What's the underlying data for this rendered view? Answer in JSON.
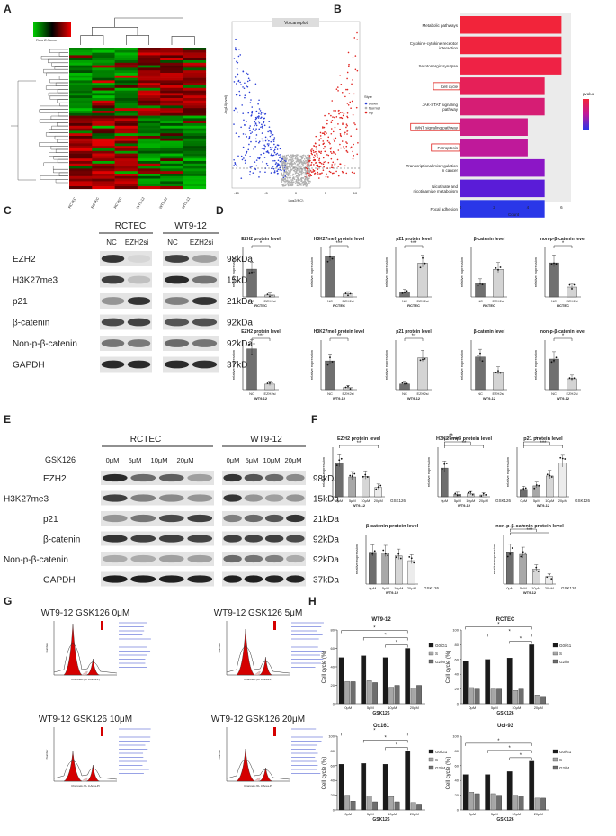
{
  "panels": {
    "A": {
      "letter": "A",
      "color_key": {
        "title": "Color Key",
        "axis": "Row Z-Score"
      },
      "heatmap_columns": [
        "RCTEC",
        "RCTEC",
        "RCTEC",
        "WT9-12",
        "WT9-12",
        "WT9-12"
      ],
      "volcano": {
        "title": "Volcanoplot",
        "xlabel": "Log2(FC)",
        "ylabel": "-log10(pval)",
        "xticks": [
          "-10",
          "-5",
          "0",
          "5",
          "10"
        ],
        "legend_title": "Style",
        "legend": [
          "Down",
          "Normal",
          "Up"
        ],
        "colors": {
          "down": "#2b3fd6",
          "normal": "#b0b0b0",
          "up": "#e0231f"
        }
      }
    },
    "B": {
      "letter": "B",
      "chart_data": {
        "type": "bar",
        "orientation": "horizontal",
        "categories": [
          "Metabolic pathways",
          "Cytokine-cytokine receptor interaction",
          "Serotonergic synapse",
          "Cell cycle",
          "JAK-STAT signaling pathway",
          "WNT signaling pathway",
          "Ferroptosis",
          "Transcriptional misregulation in cancer",
          "Nicotinate and nicotinamide metabolism",
          "Focal adhesion"
        ],
        "values": [
          6,
          6,
          6,
          5,
          5,
          4,
          4,
          5,
          5,
          5
        ],
        "highlighted": [
          "Cell cycle",
          "WNT signaling pathway",
          "Ferroptosis"
        ],
        "xlabel": "Count",
        "xticks": [
          "0",
          "2",
          "4",
          "6"
        ],
        "legend_title": "pvalue",
        "colors": [
          "#f2243a",
          "#f0233e",
          "#ef2245",
          "#e62058",
          "#d61d74",
          "#cc1b86",
          "#bf199a",
          "#8c16c6",
          "#5a1cd8",
          "#2a37e8"
        ]
      }
    },
    "C": {
      "letter": "C",
      "groups": [
        "RCTEC",
        "WT9-12"
      ],
      "lanes": [
        "NC",
        "EZH2si",
        "NC",
        "EZH2si"
      ],
      "proteins": [
        "EZH2",
        "H3K27me3",
        "p21",
        "β-catenin",
        "Non-p-β-catenin",
        "GAPDH"
      ],
      "sizes": [
        "98kDa",
        "15kDa",
        "21kDa",
        "92kDa",
        "92kDa",
        "37kDa"
      ]
    },
    "D": {
      "letter": "D",
      "ylabel": "relative expression",
      "chart_data": [
        {
          "type": "bar",
          "title": "EZH2 protein level",
          "cell": "RCTEC",
          "categories": [
            "NC",
            "EZH2si"
          ],
          "values": [
            0.45,
            0.03
          ],
          "ylim": [
            0,
            0.8
          ],
          "sig": "*"
        },
        {
          "type": "bar",
          "title": "H3K27me3 protein level",
          "cell": "RCTEC",
          "categories": [
            "NC",
            "EZH2si"
          ],
          "values": [
            0.41,
            0.03
          ],
          "ylim": [
            0,
            0.5
          ],
          "sig": "***"
        },
        {
          "type": "bar",
          "title": "p21 protein level",
          "cell": "RCTEC",
          "categories": [
            "NC",
            "EZH2si"
          ],
          "values": [
            0.12,
            0.82
          ],
          "ylim": [
            0,
            1.2
          ],
          "sig": "***"
        },
        {
          "type": "bar",
          "title": "β-catenin level",
          "cell": "RCTEC",
          "categories": [
            "NC",
            "EZH2si"
          ],
          "values": [
            0.07,
            0.14
          ],
          "ylim": [
            0,
            0.25
          ],
          "sig": ""
        },
        {
          "type": "bar",
          "title": "non-p-β-catenin level",
          "cell": "RCTEC",
          "categories": [
            "NC",
            "EZH2si"
          ],
          "values": [
            0.62,
            0.18
          ],
          "ylim": [
            0,
            0.9
          ],
          "sig": "*"
        },
        {
          "type": "bar",
          "title": "EZH2 protein level",
          "cell": "WT9-12",
          "categories": [
            "NC",
            "EZH2si"
          ],
          "values": [
            0.37,
            0.05
          ],
          "ylim": [
            0,
            0.45
          ],
          "sig": "***"
        },
        {
          "type": "bar",
          "title": "H3K27me3 protein level",
          "cell": "WT9-12",
          "categories": [
            "NC",
            "EZH2si"
          ],
          "values": [
            0.58,
            0.04
          ],
          "ylim": [
            0,
            1.0
          ],
          "sig": "**"
        },
        {
          "type": "bar",
          "title": "p21 protein level",
          "cell": "WT9-12",
          "categories": [
            "NC",
            "EZH2si"
          ],
          "values": [
            0.08,
            0.45
          ],
          "ylim": [
            0,
            0.7
          ],
          "sig": "**"
        },
        {
          "type": "bar",
          "title": "β-catenin level",
          "cell": "WT9-12",
          "categories": [
            "NC",
            "EZH2si"
          ],
          "values": [
            0.33,
            0.18
          ],
          "ylim": [
            0,
            0.5
          ],
          "sig": ""
        },
        {
          "type": "bar",
          "title": "non-p-β-catenin level",
          "cell": "WT9-12",
          "categories": [
            "NC",
            "EZH2si"
          ],
          "values": [
            0.34,
            0.12
          ],
          "ylim": [
            0,
            0.55
          ],
          "sig": "*"
        }
      ]
    },
    "E": {
      "letter": "E",
      "treatment": "GSK126",
      "groups": [
        "RCTEC",
        "WT9-12"
      ],
      "doses": [
        "0μM",
        "5μM",
        "10μM",
        "20μM"
      ],
      "proteins": [
        "EZH2",
        "H3K27me3",
        "p21",
        "β-catenin",
        "Non-p-β-catenin",
        "GAPDH"
      ],
      "sizes": [
        "98kDa",
        "15kDa",
        "21kDa",
        "92kDa",
        "92kDa",
        "37kDa"
      ]
    },
    "F": {
      "letter": "F",
      "ylabel": "relative expression",
      "xgroup": "WT9-12",
      "treatment": "GSK126",
      "chart_data": [
        {
          "type": "bar",
          "title": "EZH2 protein level",
          "categories": [
            "0μM",
            "5μM",
            "10μM",
            "20μM"
          ],
          "values": [
            0.55,
            0.32,
            0.33,
            0.15
          ],
          "ylim": [
            0,
            0.8
          ],
          "sig": [
            "**"
          ]
        },
        {
          "type": "bar",
          "title": "H3K27me3 protein level",
          "categories": [
            "0μM",
            "5μM",
            "10μM",
            "20μM"
          ],
          "values": [
            1.45,
            0.12,
            0.15,
            0.09
          ],
          "ylim": [
            0,
            2.5
          ],
          "sig": [
            "**",
            "**",
            "**"
          ]
        },
        {
          "type": "bar",
          "title": "p21 protein level",
          "categories": [
            "0μM",
            "5μM",
            "10μM",
            "20μM"
          ],
          "values": [
            0.15,
            0.22,
            0.42,
            0.68
          ],
          "ylim": [
            0,
            1.0
          ],
          "sig": [
            "*",
            "***"
          ]
        },
        {
          "type": "bar",
          "title": "β-catenin protein level",
          "categories": [
            "0μM",
            "5μM",
            "10μM",
            "20μM"
          ],
          "values": [
            1.6,
            1.58,
            1.42,
            1.18
          ],
          "ylim": [
            0,
            2.5
          ],
          "sig": []
        },
        {
          "type": "bar",
          "title": "non-p-β-catenin protein level",
          "categories": [
            "0μM",
            "5μM",
            "10μM",
            "20μM"
          ],
          "values": [
            1.3,
            1.2,
            0.6,
            0.3
          ],
          "ylim": [
            0,
            2.0
          ],
          "sig": [
            "*",
            "***"
          ]
        }
      ]
    },
    "G": {
      "letter": "G",
      "titles": [
        "WT9-12  GSK126 0μM",
        "WT9-12  GSK126 5μM",
        "WT9-12  GSK126 10μM",
        "WT9-12  GSK126 20μM"
      ],
      "xlabel": "Channels (FL 3-Area-P)",
      "ylabel": "Number"
    },
    "H": {
      "letter": "H",
      "ylabel": "Cell cycle (%)",
      "xlabel": "GSK126",
      "legend": [
        "G0/G1",
        "S",
        "G2/M"
      ],
      "colors": [
        "#1a1a1a",
        "#a6a6a6",
        "#6e6e6e"
      ],
      "chart_data": [
        {
          "type": "bar",
          "title": "WT9-12",
          "categories": [
            "0μM",
            "5μM",
            "10μM",
            "20μM"
          ],
          "series": [
            {
              "name": "G0/G1",
              "values": [
                50,
                52,
                50,
                60
              ]
            },
            {
              "name": "S",
              "values": [
                24,
                25,
                18,
                17
              ]
            },
            {
              "name": "G2/M",
              "values": [
                24,
                23,
                20,
                20
              ]
            }
          ],
          "ylim": [
            0,
            80
          ],
          "yticks": [
            "0",
            "20",
            "40",
            "60",
            "80"
          ]
        },
        {
          "type": "bar",
          "title": "RCTEC",
          "categories": [
            "0μM",
            "5μM",
            "10μM",
            "20μM"
          ],
          "series": [
            {
              "name": "G0/G1",
              "values": [
                58,
                60,
                62,
                80
              ]
            },
            {
              "name": "S",
              "values": [
                22,
                20,
                18,
                12
              ]
            },
            {
              "name": "G2/M",
              "values": [
                20,
                20,
                20,
                10
              ]
            }
          ],
          "ylim": [
            0,
            100
          ],
          "yticks": [
            "0",
            "20",
            "40",
            "60",
            "80",
            "100"
          ]
        },
        {
          "type": "bar",
          "title": "Ox161",
          "categories": [
            "0μM",
            "5μM",
            "10μM",
            "20μM"
          ],
          "series": [
            {
              "name": "G0/G1",
              "values": [
                62,
                63,
                62,
                80
              ]
            },
            {
              "name": "S",
              "values": [
                20,
                19,
                18,
                10
              ]
            },
            {
              "name": "G2/M",
              "values": [
                12,
                11,
                11,
                8
              ]
            }
          ],
          "ylim": [
            0,
            100
          ],
          "yticks": [
            "0",
            "20",
            "40",
            "60",
            "80",
            "100"
          ]
        },
        {
          "type": "bar",
          "title": "Ucl-93",
          "categories": [
            "0μM",
            "5μM",
            "10μM",
            "20μM"
          ],
          "series": [
            {
              "name": "G0/G1",
              "values": [
                48,
                48,
                52,
                66
              ]
            },
            {
              "name": "S",
              "values": [
                24,
                22,
                20,
                16
              ]
            },
            {
              "name": "G2/M",
              "values": [
                22,
                20,
                19,
                16
              ]
            }
          ],
          "ylim": [
            0,
            100
          ],
          "yticks": [
            "0",
            "20",
            "40",
            "60",
            "80",
            "100"
          ]
        }
      ]
    }
  }
}
